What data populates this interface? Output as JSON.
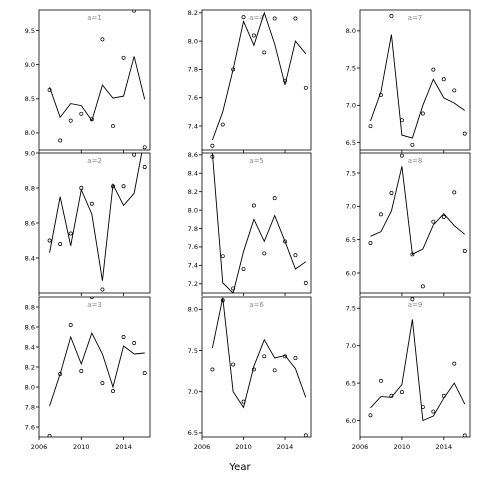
{
  "chart_data": {
    "type": "scatter",
    "xlabel": "Year",
    "xlim": [
      2006,
      2016.5
    ],
    "xticks": [
      2006,
      2010,
      2014
    ],
    "grid": false,
    "panels": [
      {
        "label": "a=1",
        "ylim": [
          7.75,
          9.8
        ],
        "yticks": [
          8.0,
          8.5,
          9.0,
          9.5
        ],
        "points": [
          [
            2007,
            8.63
          ],
          [
            2008,
            7.89
          ],
          [
            2009,
            8.18
          ],
          [
            2010,
            8.28
          ],
          [
            2011,
            8.2
          ],
          [
            2012,
            9.37
          ],
          [
            2013,
            8.1
          ],
          [
            2014,
            9.1
          ],
          [
            2015,
            9.79
          ],
          [
            2016,
            7.79
          ]
        ],
        "line": [
          [
            2007,
            8.67
          ],
          [
            2008,
            8.23
          ],
          [
            2009,
            8.43
          ],
          [
            2010,
            8.4
          ],
          [
            2011,
            8.18
          ],
          [
            2012,
            8.7
          ],
          [
            2013,
            8.51
          ],
          [
            2014,
            8.54
          ],
          [
            2015,
            9.12
          ],
          [
            2016,
            8.49
          ]
        ]
      },
      {
        "label": "a=2",
        "ylim": [
          8.2,
          9.0
        ],
        "yticks": [
          8.4,
          8.6,
          8.8,
          9.0
        ],
        "points": [
          [
            2007,
            8.5
          ],
          [
            2008,
            8.48
          ],
          [
            2009,
            8.54
          ],
          [
            2010,
            8.8
          ],
          [
            2011,
            8.71
          ],
          [
            2012,
            8.22
          ],
          [
            2013,
            8.81
          ],
          [
            2014,
            8.81
          ],
          [
            2015,
            8.99
          ],
          [
            2016,
            8.92
          ]
        ],
        "line": [
          [
            2007,
            8.43
          ],
          [
            2008,
            8.75
          ],
          [
            2009,
            8.47
          ],
          [
            2010,
            8.79
          ],
          [
            2011,
            8.65
          ],
          [
            2012,
            8.27
          ],
          [
            2013,
            8.82
          ],
          [
            2014,
            8.7
          ],
          [
            2015,
            8.77
          ],
          [
            2016,
            9.09
          ]
        ]
      },
      {
        "label": "a=3",
        "ylim": [
          7.5,
          8.9
        ],
        "yticks": [
          7.6,
          7.8,
          8.0,
          8.2,
          8.4,
          8.6,
          8.8
        ],
        "points": [
          [
            2007,
            7.51
          ],
          [
            2008,
            8.13
          ],
          [
            2009,
            8.62
          ],
          [
            2010,
            8.16
          ],
          [
            2011,
            8.9
          ],
          [
            2012,
            8.04
          ],
          [
            2013,
            7.96
          ],
          [
            2014,
            8.5
          ],
          [
            2015,
            8.44
          ],
          [
            2016,
            8.14
          ]
        ],
        "line": [
          [
            2007,
            7.81
          ],
          [
            2008,
            8.13
          ],
          [
            2009,
            8.5
          ],
          [
            2010,
            8.23
          ],
          [
            2011,
            8.54
          ],
          [
            2012,
            8.33
          ],
          [
            2013,
            8.0
          ],
          [
            2014,
            8.41
          ],
          [
            2015,
            8.33
          ],
          [
            2016,
            8.34
          ]
        ]
      },
      {
        "label": "a=4",
        "ylim": [
          7.23,
          8.22
        ],
        "yticks": [
          7.4,
          7.6,
          7.8,
          8.0,
          8.2
        ],
        "points": [
          [
            2007,
            7.26
          ],
          [
            2008,
            7.41
          ],
          [
            2009,
            7.8
          ],
          [
            2010,
            8.17
          ],
          [
            2011,
            8.04
          ],
          [
            2012,
            7.92
          ],
          [
            2013,
            8.16
          ],
          [
            2014,
            7.72
          ],
          [
            2015,
            8.16
          ],
          [
            2016,
            7.67
          ]
        ],
        "line": [
          [
            2007,
            7.3
          ],
          [
            2008,
            7.5
          ],
          [
            2009,
            7.8
          ],
          [
            2010,
            8.14
          ],
          [
            2011,
            7.97
          ],
          [
            2012,
            8.2
          ],
          [
            2013,
            7.98
          ],
          [
            2014,
            7.69
          ],
          [
            2015,
            8.0
          ],
          [
            2016,
            7.91
          ]
        ]
      },
      {
        "label": "a=5",
        "ylim": [
          7.1,
          8.62
        ],
        "yticks": [
          7.2,
          7.4,
          7.6,
          7.8,
          8.0,
          8.2,
          8.4,
          8.6
        ],
        "points": [
          [
            2007,
            8.58
          ],
          [
            2008,
            7.5
          ],
          [
            2009,
            7.15
          ],
          [
            2010,
            7.36
          ],
          [
            2011,
            8.05
          ],
          [
            2012,
            7.53
          ],
          [
            2013,
            8.13
          ],
          [
            2014,
            7.66
          ],
          [
            2015,
            7.51
          ],
          [
            2016,
            7.21
          ]
        ],
        "line": [
          [
            2007,
            8.62
          ],
          [
            2008,
            7.21
          ],
          [
            2009,
            7.1
          ],
          [
            2010,
            7.55
          ],
          [
            2011,
            7.9
          ],
          [
            2012,
            7.66
          ],
          [
            2013,
            7.94
          ],
          [
            2014,
            7.66
          ],
          [
            2015,
            7.36
          ],
          [
            2016,
            7.44
          ]
        ]
      },
      {
        "label": "a=6",
        "ylim": [
          6.45,
          8.15
        ],
        "yticks": [
          6.5,
          7.0,
          7.5,
          8.0
        ],
        "points": [
          [
            2007,
            7.27
          ],
          [
            2008,
            8.11
          ],
          [
            2009,
            7.33
          ],
          [
            2010,
            6.88
          ],
          [
            2011,
            7.27
          ],
          [
            2012,
            7.43
          ],
          [
            2013,
            7.26
          ],
          [
            2014,
            7.43
          ],
          [
            2015,
            7.41
          ],
          [
            2016,
            6.47
          ]
        ],
        "line": [
          [
            2007,
            7.53
          ],
          [
            2008,
            8.14
          ],
          [
            2009,
            7.0
          ],
          [
            2010,
            6.81
          ],
          [
            2011,
            7.31
          ],
          [
            2012,
            7.63
          ],
          [
            2013,
            7.41
          ],
          [
            2014,
            7.44
          ],
          [
            2015,
            7.28
          ],
          [
            2016,
            6.93
          ]
        ]
      },
      {
        "label": "a=7",
        "ylim": [
          6.4,
          8.28
        ],
        "yticks": [
          6.5,
          7.0,
          7.5,
          8.0
        ],
        "points": [
          [
            2007,
            6.72
          ],
          [
            2008,
            7.14
          ],
          [
            2009,
            8.2
          ],
          [
            2010,
            6.8
          ],
          [
            2011,
            6.47
          ],
          [
            2012,
            6.89
          ],
          [
            2013,
            7.48
          ],
          [
            2014,
            7.35
          ],
          [
            2015,
            7.2
          ],
          [
            2016,
            6.62
          ]
        ],
        "line": [
          [
            2007,
            6.79
          ],
          [
            2008,
            7.18
          ],
          [
            2009,
            7.95
          ],
          [
            2010,
            6.6
          ],
          [
            2011,
            6.56
          ],
          [
            2012,
            7.0
          ],
          [
            2013,
            7.35
          ],
          [
            2014,
            7.1
          ],
          [
            2015,
            7.03
          ],
          [
            2016,
            6.93
          ]
        ]
      },
      {
        "label": "a=8",
        "ylim": [
          5.7,
          7.8
        ],
        "yticks": [
          6.0,
          6.5,
          7.0,
          7.5
        ],
        "points": [
          [
            2007,
            6.45
          ],
          [
            2008,
            6.88
          ],
          [
            2009,
            7.2
          ],
          [
            2010,
            7.76
          ],
          [
            2011,
            6.28
          ],
          [
            2012,
            5.8
          ],
          [
            2013,
            6.77
          ],
          [
            2014,
            6.84
          ],
          [
            2015,
            7.21
          ],
          [
            2016,
            6.33
          ]
        ],
        "line": [
          [
            2007,
            6.55
          ],
          [
            2008,
            6.62
          ],
          [
            2009,
            6.93
          ],
          [
            2010,
            7.6
          ],
          [
            2011,
            6.28
          ],
          [
            2012,
            6.36
          ],
          [
            2013,
            6.72
          ],
          [
            2014,
            6.89
          ],
          [
            2015,
            6.71
          ],
          [
            2016,
            6.58
          ]
        ]
      },
      {
        "label": "a=9",
        "ylim": [
          5.78,
          7.65
        ],
        "yticks": [
          6.0,
          6.5,
          7.0,
          7.5
        ],
        "points": [
          [
            2007,
            6.07
          ],
          [
            2008,
            6.53
          ],
          [
            2009,
            6.33
          ],
          [
            2010,
            6.38
          ],
          [
            2011,
            7.62
          ],
          [
            2012,
            6.18
          ],
          [
            2013,
            6.12
          ],
          [
            2014,
            6.33
          ],
          [
            2015,
            6.76
          ],
          [
            2016,
            5.8
          ]
        ],
        "line": [
          [
            2007,
            6.17
          ],
          [
            2008,
            6.32
          ],
          [
            2009,
            6.31
          ],
          [
            2010,
            6.48
          ],
          [
            2011,
            7.35
          ],
          [
            2012,
            6.0
          ],
          [
            2013,
            6.06
          ],
          [
            2014,
            6.3
          ],
          [
            2015,
            6.5
          ],
          [
            2016,
            6.22
          ]
        ]
      }
    ]
  }
}
